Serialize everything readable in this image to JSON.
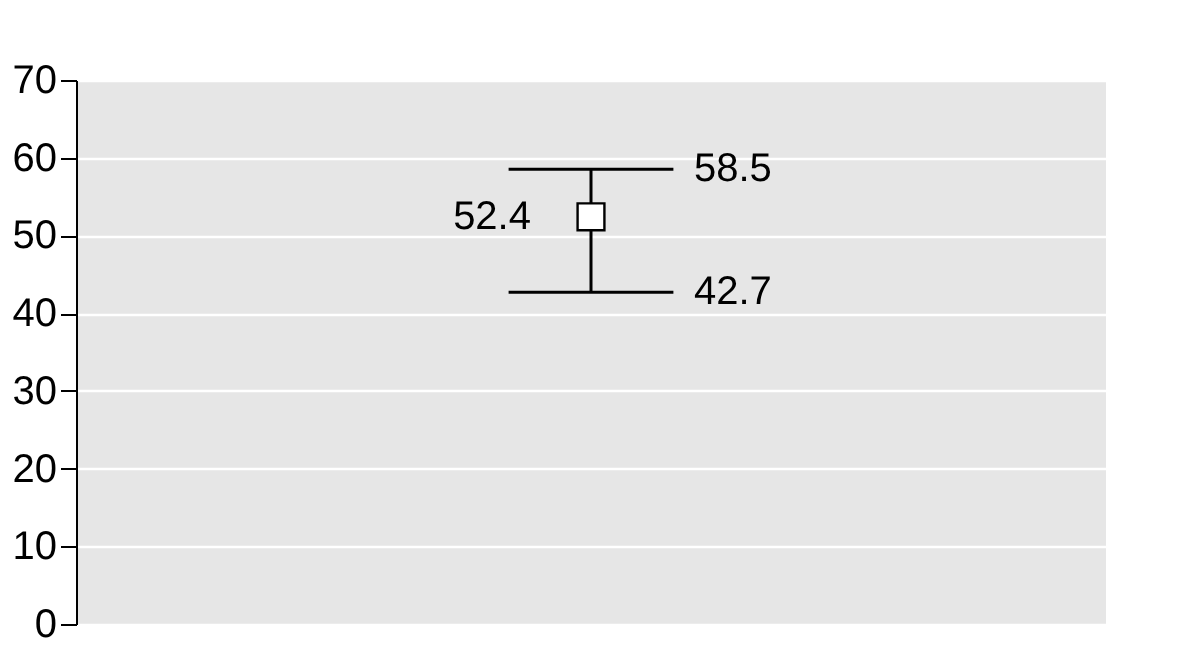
{
  "chart_data": {
    "type": "scatter",
    "categories": [
      null
    ],
    "values": [
      52.4
    ],
    "errors": [
      [
        42.7,
        58.5
      ]
    ],
    "color": "#000000",
    "marker": "square",
    "data_labels": true,
    "annotations": [
      "58.5",
      "42.7"
    ],
    "ylim": [
      0,
      70
    ],
    "yticks": [
      0,
      10,
      20,
      30,
      40,
      50,
      60,
      70
    ],
    "grid": "y",
    "tick_labels": "y"
  }
}
